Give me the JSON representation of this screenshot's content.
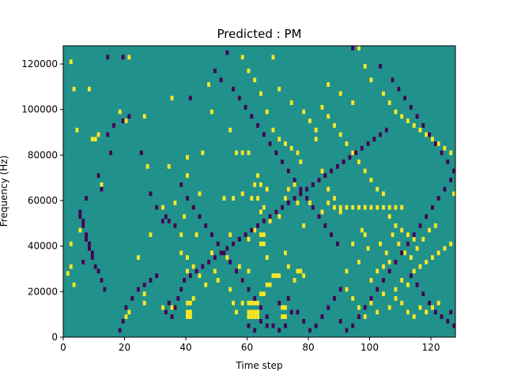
{
  "chart_data": {
    "type": "heatmap",
    "title": "Predicted : PM",
    "xlabel": "Time step",
    "ylabel": "Frequency (Hz)",
    "xlim": [
      0,
      128
    ],
    "ylim": [
      0,
      128000
    ],
    "x_ticks": [
      0,
      20,
      40,
      60,
      80,
      100,
      120
    ],
    "x_tick_labels": [
      "0",
      "20",
      "40",
      "60",
      "80",
      "100",
      "120"
    ],
    "y_ticks": [
      0,
      20000,
      40000,
      60000,
      80000,
      100000,
      120000
    ],
    "y_tick_labels": [
      "0",
      "20000",
      "40000",
      "60000",
      "80000",
      "100000",
      "120000"
    ],
    "grid": false,
    "background_value": 0,
    "colors": {
      "background": "#21918c",
      "negative": "#440154",
      "positive": "#fde725"
    },
    "cells_positive": [
      [
        2,
        120000
      ],
      [
        3,
        108000
      ],
      [
        4,
        90000
      ],
      [
        5,
        46000
      ],
      [
        2,
        40000
      ],
      [
        2,
        30000
      ],
      [
        1,
        27000
      ],
      [
        3,
        22000
      ],
      [
        8,
        108000
      ],
      [
        9,
        86000
      ],
      [
        10,
        86000
      ],
      [
        12,
        66000
      ],
      [
        11,
        88000
      ],
      [
        18,
        98000
      ],
      [
        20,
        94000
      ],
      [
        26,
        96000
      ],
      [
        21,
        122000
      ],
      [
        27,
        74000
      ],
      [
        35,
        104000
      ],
      [
        34,
        74000
      ],
      [
        36,
        58000
      ],
      [
        40,
        70000
      ],
      [
        40,
        78000
      ],
      [
        45,
        80000
      ],
      [
        47,
        110000
      ],
      [
        48,
        98000
      ],
      [
        44,
        62000
      ],
      [
        43,
        44000
      ],
      [
        40,
        34000
      ],
      [
        42,
        30000
      ],
      [
        44,
        26000
      ],
      [
        46,
        22000
      ],
      [
        42,
        16000
      ],
      [
        40,
        14000
      ],
      [
        41,
        14000
      ],
      [
        40,
        10000
      ],
      [
        41,
        10000
      ],
      [
        40,
        8000
      ],
      [
        41,
        8000
      ],
      [
        35,
        12000
      ],
      [
        32,
        12000
      ],
      [
        26,
        18000
      ],
      [
        26,
        14000
      ],
      [
        21,
        10000
      ],
      [
        20,
        8000
      ],
      [
        24,
        34000
      ],
      [
        28,
        44000
      ],
      [
        32,
        56000
      ],
      [
        39,
        52000
      ],
      [
        38,
        44000
      ],
      [
        38,
        36000
      ],
      [
        40,
        28000
      ],
      [
        48,
        36000
      ],
      [
        49,
        28000
      ],
      [
        50,
        24000
      ],
      [
        54,
        20000
      ],
      [
        55,
        14000
      ],
      [
        56,
        10000
      ],
      [
        58,
        14000
      ],
      [
        60,
        14000
      ],
      [
        61,
        14000
      ],
      [
        62,
        14000
      ],
      [
        63,
        14000
      ],
      [
        60,
        10000
      ],
      [
        61,
        10000
      ],
      [
        62,
        10000
      ],
      [
        63,
        10000
      ],
      [
        60,
        8000
      ],
      [
        61,
        8000
      ],
      [
        62,
        8000
      ],
      [
        63,
        8000
      ],
      [
        64,
        18000
      ],
      [
        65,
        18000
      ],
      [
        66,
        22000
      ],
      [
        67,
        22000
      ],
      [
        68,
        26000
      ],
      [
        69,
        26000
      ],
      [
        70,
        26000
      ],
      [
        71,
        12000
      ],
      [
        72,
        12000
      ],
      [
        71,
        8000
      ],
      [
        72,
        8000
      ],
      [
        75,
        24000
      ],
      [
        76,
        28000
      ],
      [
        77,
        28000
      ],
      [
        78,
        26000
      ],
      [
        73,
        30000
      ],
      [
        72,
        36000
      ],
      [
        64,
        40000
      ],
      [
        65,
        40000
      ],
      [
        64,
        44000
      ],
      [
        65,
        44000
      ],
      [
        66,
        34000
      ],
      [
        60,
        42000
      ],
      [
        62,
        46000
      ],
      [
        61,
        60000
      ],
      [
        63,
        70000
      ],
      [
        64,
        66000
      ],
      [
        62,
        66000
      ],
      [
        63,
        60000
      ],
      [
        60,
        28000
      ],
      [
        57,
        30000
      ],
      [
        58,
        24000
      ],
      [
        55,
        60000
      ],
      [
        54,
        44000
      ],
      [
        53,
        34000
      ],
      [
        52,
        60000
      ],
      [
        58,
        62000
      ],
      [
        56,
        80000
      ],
      [
        58,
        80000
      ],
      [
        60,
        80000
      ],
      [
        64,
        54000
      ],
      [
        65,
        56000
      ],
      [
        66,
        64000
      ],
      [
        67,
        50000
      ],
      [
        70,
        52000
      ],
      [
        72,
        60000
      ],
      [
        73,
        64000
      ],
      [
        75,
        66000
      ],
      [
        76,
        58000
      ],
      [
        78,
        48000
      ],
      [
        80,
        58000
      ],
      [
        84,
        54000
      ],
      [
        86,
        58000
      ],
      [
        88,
        56000
      ],
      [
        90,
        56000
      ],
      [
        92,
        56000
      ],
      [
        94,
        56000
      ],
      [
        96,
        56000
      ],
      [
        98,
        56000
      ],
      [
        100,
        56000
      ],
      [
        102,
        56000
      ],
      [
        104,
        56000
      ],
      [
        106,
        56000
      ],
      [
        108,
        56000
      ],
      [
        110,
        56000
      ],
      [
        54,
        90000
      ],
      [
        64,
        106000
      ],
      [
        66,
        98000
      ],
      [
        68,
        90000
      ],
      [
        70,
        86000
      ],
      [
        72,
        84000
      ],
      [
        74,
        82000
      ],
      [
        76,
        80000
      ],
      [
        77,
        76000
      ],
      [
        82,
        86000
      ],
      [
        84,
        72000
      ],
      [
        86,
        64000
      ],
      [
        88,
        60000
      ],
      [
        90,
        54000
      ],
      [
        92,
        28000
      ],
      [
        94,
        40000
      ],
      [
        96,
        32000
      ],
      [
        98,
        44000
      ],
      [
        100,
        24000
      ],
      [
        102,
        28000
      ],
      [
        104,
        30000
      ],
      [
        106,
        32000
      ],
      [
        108,
        20000
      ],
      [
        110,
        24000
      ],
      [
        112,
        22000
      ],
      [
        114,
        28000
      ],
      [
        116,
        30000
      ],
      [
        118,
        32000
      ],
      [
        120,
        34000
      ],
      [
        122,
        36000
      ],
      [
        124,
        38000
      ],
      [
        126,
        40000
      ],
      [
        58,
        122000
      ],
      [
        60,
        116000
      ],
      [
        62,
        112000
      ],
      [
        70,
        108000
      ],
      [
        74,
        102000
      ],
      [
        78,
        98000
      ],
      [
        80,
        94000
      ],
      [
        82,
        90000
      ],
      [
        84,
        100000
      ],
      [
        86,
        96000
      ],
      [
        88,
        92000
      ],
      [
        90,
        88000
      ],
      [
        92,
        84000
      ],
      [
        94,
        80000
      ],
      [
        96,
        76000
      ],
      [
        98,
        72000
      ],
      [
        100,
        68000
      ],
      [
        102,
        64000
      ],
      [
        104,
        62000
      ],
      [
        106,
        52000
      ],
      [
        108,
        48000
      ],
      [
        110,
        46000
      ],
      [
        112,
        44000
      ],
      [
        114,
        42000
      ],
      [
        96,
        128000
      ],
      [
        98,
        118000
      ],
      [
        100,
        112000
      ],
      [
        104,
        106000
      ],
      [
        106,
        102000
      ],
      [
        108,
        98000
      ],
      [
        110,
        96000
      ],
      [
        112,
        94000
      ],
      [
        114,
        92000
      ],
      [
        116,
        90000
      ],
      [
        118,
        88000
      ],
      [
        120,
        86000
      ],
      [
        122,
        84000
      ],
      [
        124,
        82000
      ],
      [
        126,
        80000
      ],
      [
        127,
        62000
      ],
      [
        68,
        122000
      ],
      [
        86,
        110000
      ],
      [
        90,
        106000
      ],
      [
        94,
        102000
      ],
      [
        97,
        46000
      ],
      [
        99,
        38000
      ],
      [
        103,
        40000
      ],
      [
        105,
        36000
      ],
      [
        107,
        44000
      ],
      [
        109,
        40000
      ],
      [
        111,
        36000
      ],
      [
        113,
        34000
      ],
      [
        115,
        38000
      ],
      [
        117,
        42000
      ],
      [
        119,
        46000
      ],
      [
        121,
        48000
      ],
      [
        92,
        20000
      ],
      [
        94,
        16000
      ],
      [
        96,
        12000
      ],
      [
        98,
        8000
      ],
      [
        100,
        14000
      ],
      [
        102,
        10000
      ],
      [
        104,
        18000
      ],
      [
        106,
        12000
      ],
      [
        108,
        16000
      ],
      [
        110,
        14000
      ],
      [
        112,
        10000
      ],
      [
        114,
        8000
      ],
      [
        116,
        12000
      ],
      [
        118,
        10000
      ],
      [
        120,
        12000
      ],
      [
        122,
        14000
      ]
    ],
    "cells_negative": [
      [
        5,
        54000
      ],
      [
        5,
        52000
      ],
      [
        6,
        50000
      ],
      [
        6,
        48000
      ],
      [
        7,
        44000
      ],
      [
        7,
        42000
      ],
      [
        8,
        40000
      ],
      [
        8,
        38000
      ],
      [
        9,
        36000
      ],
      [
        9,
        34000
      ],
      [
        6,
        32000
      ],
      [
        10,
        30000
      ],
      [
        11,
        28000
      ],
      [
        12,
        24000
      ],
      [
        13,
        20000
      ],
      [
        7,
        60000
      ],
      [
        11,
        70000
      ],
      [
        12,
        64000
      ],
      [
        15,
        80000
      ],
      [
        14,
        88000
      ],
      [
        16,
        92000
      ],
      [
        19,
        94000
      ],
      [
        21,
        96000
      ],
      [
        25,
        80000
      ],
      [
        28,
        62000
      ],
      [
        30,
        56000
      ],
      [
        32,
        50000
      ],
      [
        33,
        52000
      ],
      [
        34,
        50000
      ],
      [
        36,
        48000
      ],
      [
        38,
        66000
      ],
      [
        40,
        60000
      ],
      [
        42,
        56000
      ],
      [
        44,
        52000
      ],
      [
        46,
        48000
      ],
      [
        48,
        44000
      ],
      [
        50,
        40000
      ],
      [
        52,
        36000
      ],
      [
        54,
        32000
      ],
      [
        56,
        28000
      ],
      [
        58,
        24000
      ],
      [
        60,
        20000
      ],
      [
        62,
        16000
      ],
      [
        64,
        12000
      ],
      [
        66,
        8000
      ],
      [
        68,
        4000
      ],
      [
        70,
        2000
      ],
      [
        72,
        4000
      ],
      [
        18,
        2000
      ],
      [
        19,
        6000
      ],
      [
        20,
        12000
      ],
      [
        22,
        16000
      ],
      [
        24,
        20000
      ],
      [
        26,
        22000
      ],
      [
        28,
        24000
      ],
      [
        30,
        26000
      ],
      [
        33,
        10000
      ],
      [
        34,
        14000
      ],
      [
        35,
        8000
      ],
      [
        36,
        12000
      ],
      [
        37,
        16000
      ],
      [
        38,
        20000
      ],
      [
        39,
        24000
      ],
      [
        41,
        26000
      ],
      [
        43,
        28000
      ],
      [
        45,
        30000
      ],
      [
        47,
        32000
      ],
      [
        49,
        34000
      ],
      [
        51,
        36000
      ],
      [
        53,
        38000
      ],
      [
        55,
        40000
      ],
      [
        57,
        42000
      ],
      [
        59,
        44000
      ],
      [
        61,
        46000
      ],
      [
        63,
        48000
      ],
      [
        65,
        50000
      ],
      [
        67,
        52000
      ],
      [
        69,
        54000
      ],
      [
        71,
        56000
      ],
      [
        73,
        58000
      ],
      [
        75,
        60000
      ],
      [
        77,
        62000
      ],
      [
        79,
        64000
      ],
      [
        81,
        66000
      ],
      [
        83,
        68000
      ],
      [
        85,
        70000
      ],
      [
        87,
        72000
      ],
      [
        89,
        74000
      ],
      [
        91,
        76000
      ],
      [
        93,
        78000
      ],
      [
        95,
        80000
      ],
      [
        97,
        82000
      ],
      [
        99,
        84000
      ],
      [
        101,
        86000
      ],
      [
        103,
        88000
      ],
      [
        105,
        90000
      ],
      [
        14,
        122000
      ],
      [
        19,
        122000
      ],
      [
        41,
        104000
      ],
      [
        49,
        116000
      ],
      [
        51,
        112000
      ],
      [
        53,
        124000
      ],
      [
        55,
        108000
      ],
      [
        57,
        104000
      ],
      [
        59,
        100000
      ],
      [
        61,
        96000
      ],
      [
        63,
        92000
      ],
      [
        65,
        88000
      ],
      [
        67,
        84000
      ],
      [
        69,
        80000
      ],
      [
        71,
        76000
      ],
      [
        73,
        72000
      ],
      [
        75,
        68000
      ],
      [
        77,
        64000
      ],
      [
        79,
        60000
      ],
      [
        81,
        56000
      ],
      [
        83,
        52000
      ],
      [
        85,
        48000
      ],
      [
        87,
        44000
      ],
      [
        89,
        40000
      ],
      [
        94,
        128000
      ],
      [
        103,
        118000
      ],
      [
        107,
        112000
      ],
      [
        109,
        108000
      ],
      [
        111,
        104000
      ],
      [
        113,
        100000
      ],
      [
        115,
        96000
      ],
      [
        117,
        92000
      ],
      [
        119,
        88000
      ],
      [
        121,
        84000
      ],
      [
        123,
        80000
      ],
      [
        125,
        76000
      ],
      [
        127,
        72000
      ],
      [
        126,
        68000
      ],
      [
        124,
        64000
      ],
      [
        122,
        60000
      ],
      [
        120,
        56000
      ],
      [
        118,
        52000
      ],
      [
        116,
        48000
      ],
      [
        114,
        44000
      ],
      [
        112,
        40000
      ],
      [
        110,
        36000
      ],
      [
        108,
        32000
      ],
      [
        106,
        28000
      ],
      [
        104,
        24000
      ],
      [
        102,
        20000
      ],
      [
        100,
        16000
      ],
      [
        98,
        12000
      ],
      [
        96,
        8000
      ],
      [
        94,
        4000
      ],
      [
        92,
        2000
      ],
      [
        90,
        6000
      ],
      [
        76,
        10000
      ],
      [
        78,
        6000
      ],
      [
        80,
        2000
      ],
      [
        82,
        4000
      ],
      [
        84,
        8000
      ],
      [
        86,
        12000
      ],
      [
        88,
        16000
      ],
      [
        90,
        20000
      ],
      [
        60,
        4000
      ],
      [
        62,
        2000
      ],
      [
        64,
        6000
      ],
      [
        66,
        4000
      ],
      [
        70,
        14000
      ],
      [
        73,
        16000
      ],
      [
        74,
        10000
      ],
      [
        126,
        10000
      ],
      [
        127,
        4000
      ],
      [
        125,
        6000
      ],
      [
        123,
        8000
      ],
      [
        121,
        10000
      ],
      [
        119,
        14000
      ],
      [
        117,
        18000
      ],
      [
        115,
        22000
      ],
      [
        113,
        26000
      ]
    ]
  }
}
